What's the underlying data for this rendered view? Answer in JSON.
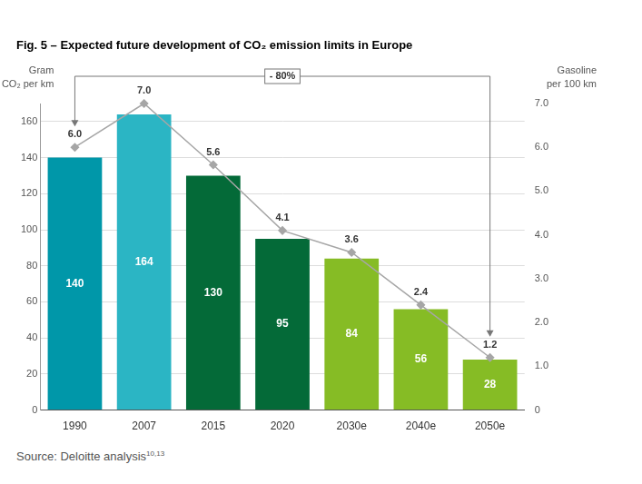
{
  "chart_data": {
    "type": "bar",
    "title": "Fig. 5 – Expected future development of CO₂ emission limits in Europe",
    "ylabel": [
      "Gram",
      "CO₂ per km"
    ],
    "y2label": [
      "Gasoline",
      "per 100 km"
    ],
    "categories": [
      "1990",
      "2007",
      "2015",
      "2020",
      "2030e",
      "2040e",
      "2050e"
    ],
    "series": [
      {
        "type": "bar",
        "colors": [
          "#0097A9",
          "#2BB5C4",
          "#046A38",
          "#046A38",
          "#86BC25",
          "#86BC25",
          "#86BC25"
        ],
        "values": [
          140,
          164,
          130,
          95,
          84,
          56,
          28
        ],
        "data_labels": true
      },
      {
        "type": "line",
        "axis": "y2",
        "color": "#a6a6a6",
        "marker": "diamond",
        "values": [
          6,
          7,
          5.6,
          4.1,
          3.6,
          2.4,
          1.2
        ],
        "value_labels": [
          "6.0",
          "7.0",
          "5.6",
          "4.1",
          "3.6",
          "2.4",
          "1.2"
        ],
        "data_labels": true
      }
    ],
    "ylim": [
      0,
      170
    ],
    "yticks": [
      0,
      20,
      40,
      60,
      80,
      100,
      120,
      140,
      160
    ],
    "y2lim": [
      0,
      7
    ],
    "y2ticks": [
      0,
      {
        "value": 1,
        "label": "1.0"
      },
      {
        "value": 2,
        "label": "2.0"
      },
      {
        "value": 3,
        "label": "3.0"
      },
      {
        "value": 4,
        "label": "4.0"
      },
      {
        "value": 5,
        "label": "5.0"
      },
      {
        "value": 6,
        "label": "6.0"
      },
      {
        "value": 7,
        "label": "7.0"
      }
    ],
    "grid": true,
    "annotations": [
      {
        "text": "- 80%",
        "from": "1990",
        "to": "2050e"
      }
    ],
    "source": {
      "text": "Source: Deloitte analysis",
      "superscript": "10,13"
    }
  }
}
